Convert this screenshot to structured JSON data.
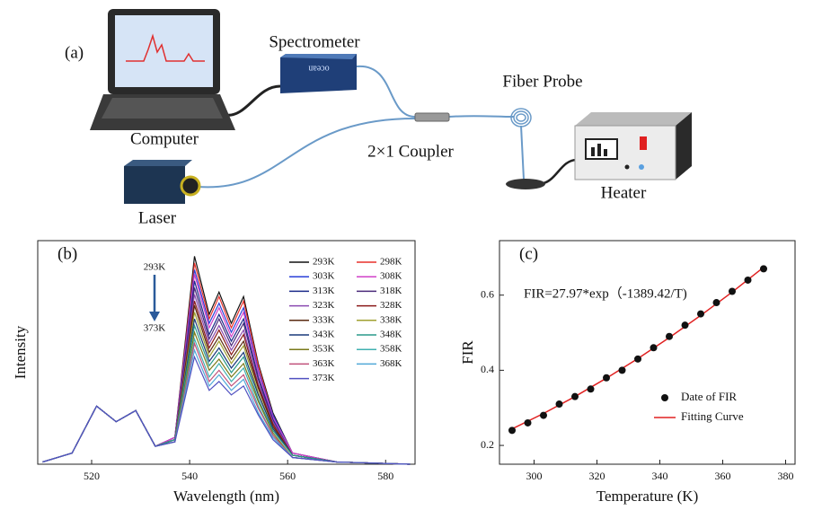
{
  "diagram": {
    "label": "(a)",
    "computer": "Computer",
    "spectrometer": "Spectrometer",
    "spectrometer_brand": "ocean",
    "fiber_probe": "Fiber Probe",
    "coupler": "2×1 Coupler",
    "laser": "Laser",
    "heater": "Heater"
  },
  "chart_data": [
    {
      "type": "line",
      "panel_label": "(b)",
      "xlabel": "Wavelength (nm)",
      "ylabel": "Intensity",
      "x": [
        510,
        516,
        521,
        525,
        529,
        533,
        537,
        541,
        544,
        546,
        548.5,
        551,
        554,
        557,
        561,
        570,
        585
      ],
      "xlim": [
        509,
        586
      ],
      "xticks": [
        520,
        540,
        560,
        580
      ],
      "ylim": [
        0,
        100
      ],
      "annotations": [
        "293K",
        "373K"
      ],
      "series": [
        {
          "name": "293K",
          "color": "#111111",
          "values": [
            1,
            5,
            26,
            19,
            24,
            8,
            12,
            93,
            67,
            77,
            63,
            75,
            45,
            23,
            5,
            1,
            0
          ]
        },
        {
          "name": "298K",
          "color": "#e8302a",
          "values": [
            1,
            5,
            26,
            19,
            24,
            8,
            12,
            90,
            65,
            75,
            61,
            73,
            44,
            22,
            5,
            1,
            0
          ]
        },
        {
          "name": "303K",
          "color": "#2a3fd8",
          "values": [
            1,
            5,
            26,
            19,
            24,
            8,
            12,
            87,
            63,
            72,
            59,
            70,
            42,
            22,
            5,
            1,
            0
          ]
        },
        {
          "name": "308K",
          "color": "#d040c8",
          "values": [
            1,
            5,
            26,
            19,
            24,
            8,
            12,
            85,
            61,
            70,
            57,
            68,
            41,
            21,
            5,
            1,
            0
          ]
        },
        {
          "name": "313K",
          "color": "#1c2a8a",
          "values": [
            1,
            5,
            26,
            19,
            24,
            8,
            11,
            82,
            58,
            67,
            55,
            65,
            39,
            20,
            4,
            1,
            0
          ]
        },
        {
          "name": "318K",
          "color": "#4a2a7a",
          "values": [
            1,
            5,
            26,
            19,
            24,
            8,
            11,
            79,
            56,
            65,
            53,
            63,
            38,
            19,
            4,
            1,
            0
          ]
        },
        {
          "name": "323K",
          "color": "#8a4ab0",
          "values": [
            1,
            5,
            26,
            19,
            24,
            8,
            11,
            76,
            54,
            62,
            51,
            60,
            36,
            19,
            4,
            1,
            0
          ]
        },
        {
          "name": "328K",
          "color": "#8a1a1a",
          "values": [
            1,
            5,
            26,
            19,
            24,
            8,
            11,
            73,
            52,
            60,
            49,
            58,
            35,
            18,
            4,
            1,
            0
          ]
        },
        {
          "name": "333K",
          "color": "#5a2a10",
          "values": [
            1,
            5,
            26,
            19,
            24,
            8,
            11,
            71,
            50,
            57,
            47,
            55,
            34,
            17,
            4,
            1,
            0
          ]
        },
        {
          "name": "338K",
          "color": "#a0a030",
          "values": [
            1,
            5,
            26,
            19,
            24,
            8,
            11,
            68,
            48,
            55,
            45,
            53,
            32,
            16,
            4,
            1,
            0
          ]
        },
        {
          "name": "343K",
          "color": "#1a3a7a",
          "values": [
            1,
            5,
            26,
            19,
            24,
            8,
            11,
            65,
            46,
            52,
            43,
            50,
            31,
            16,
            4,
            1,
            0
          ]
        },
        {
          "name": "348K",
          "color": "#2a9a8a",
          "values": [
            1,
            5,
            26,
            19,
            24,
            8,
            11,
            62,
            44,
            50,
            41,
            48,
            29,
            15,
            4,
            1,
            0
          ]
        },
        {
          "name": "353K",
          "color": "#7a7a1a",
          "values": [
            1,
            5,
            26,
            19,
            24,
            8,
            10,
            59,
            42,
            47,
            39,
            45,
            28,
            14,
            3,
            1,
            0
          ]
        },
        {
          "name": "358K",
          "color": "#40b0b0",
          "values": [
            1,
            5,
            26,
            19,
            24,
            8,
            10,
            56,
            39,
            45,
            37,
            43,
            26,
            13,
            3,
            1,
            0
          ]
        },
        {
          "name": "363K",
          "color": "#c0507a",
          "values": [
            1,
            5,
            26,
            19,
            24,
            8,
            10,
            54,
            37,
            42,
            35,
            40,
            25,
            13,
            3,
            1,
            0
          ]
        },
        {
          "name": "368K",
          "color": "#50a8d8",
          "values": [
            1,
            5,
            26,
            19,
            24,
            8,
            10,
            51,
            35,
            40,
            33,
            38,
            23,
            12,
            3,
            1,
            0
          ]
        },
        {
          "name": "373K",
          "color": "#5050c0",
          "values": [
            1,
            5,
            26,
            19,
            24,
            8,
            10,
            48,
            33,
            37,
            31,
            35,
            22,
            11,
            3,
            1,
            0
          ]
        }
      ]
    },
    {
      "type": "scatter",
      "panel_label": "(c)",
      "xlabel": "Temperature (K)",
      "ylabel": "FIR",
      "x": [
        293,
        298,
        303,
        308,
        313,
        318,
        323,
        328,
        333,
        338,
        343,
        348,
        353,
        358,
        363,
        368,
        373
      ],
      "xlim": [
        289,
        383
      ],
      "xticks": [
        300,
        320,
        340,
        360,
        380
      ],
      "ylim": [
        0.15,
        0.745
      ],
      "yticks": [
        0.2,
        0.4,
        0.6
      ],
      "annotations": [
        "FIR=27.97*exp（-1389.42/T)"
      ],
      "series": [
        {
          "name": "Date of FIR",
          "color": "#111111",
          "values": [
            0.24,
            0.26,
            0.28,
            0.31,
            0.33,
            0.35,
            0.38,
            0.4,
            0.43,
            0.46,
            0.49,
            0.52,
            0.55,
            0.58,
            0.61,
            0.64,
            0.67
          ]
        },
        {
          "name": "Fitting Curve",
          "color": "#e02020",
          "x": [
            293,
            303,
            313,
            323,
            333,
            343,
            353,
            363,
            373
          ],
          "values": [
            0.244,
            0.285,
            0.33,
            0.379,
            0.431,
            0.487,
            0.546,
            0.608,
            0.674
          ]
        }
      ]
    }
  ]
}
